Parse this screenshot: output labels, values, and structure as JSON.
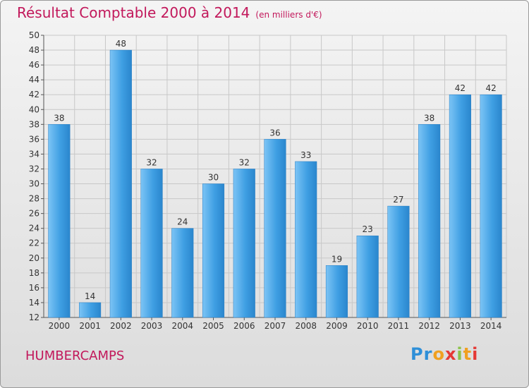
{
  "header": {
    "title": "Résultat Comptable 2000 à 2014",
    "subtitle": "(en milliers d'€)"
  },
  "footer": {
    "commune": "HUMBERCAMPS",
    "logo_letters": [
      "P",
      "r",
      "o",
      "x",
      "i",
      "t",
      "i"
    ],
    "logo_colors": [
      "#2e8fd8",
      "#2e8fd8",
      "#f0a020",
      "#e53935",
      "#8bc34a",
      "#f0a020",
      "#e53935"
    ]
  },
  "chart_data": {
    "type": "bar",
    "categories": [
      "2000",
      "2001",
      "2002",
      "2003",
      "2004",
      "2005",
      "2006",
      "2007",
      "2008",
      "2009",
      "2010",
      "2011",
      "2012",
      "2013",
      "2014"
    ],
    "values": [
      38,
      14,
      48,
      32,
      24,
      30,
      32,
      36,
      33,
      19,
      23,
      27,
      38,
      42,
      42
    ],
    "ylim": [
      12,
      50
    ],
    "yticks": [
      12,
      14,
      16,
      18,
      20,
      22,
      24,
      26,
      28,
      30,
      32,
      34,
      36,
      38,
      40,
      42,
      44,
      46,
      48,
      50
    ],
    "grid": true,
    "bar_color": "#3a9be0"
  }
}
